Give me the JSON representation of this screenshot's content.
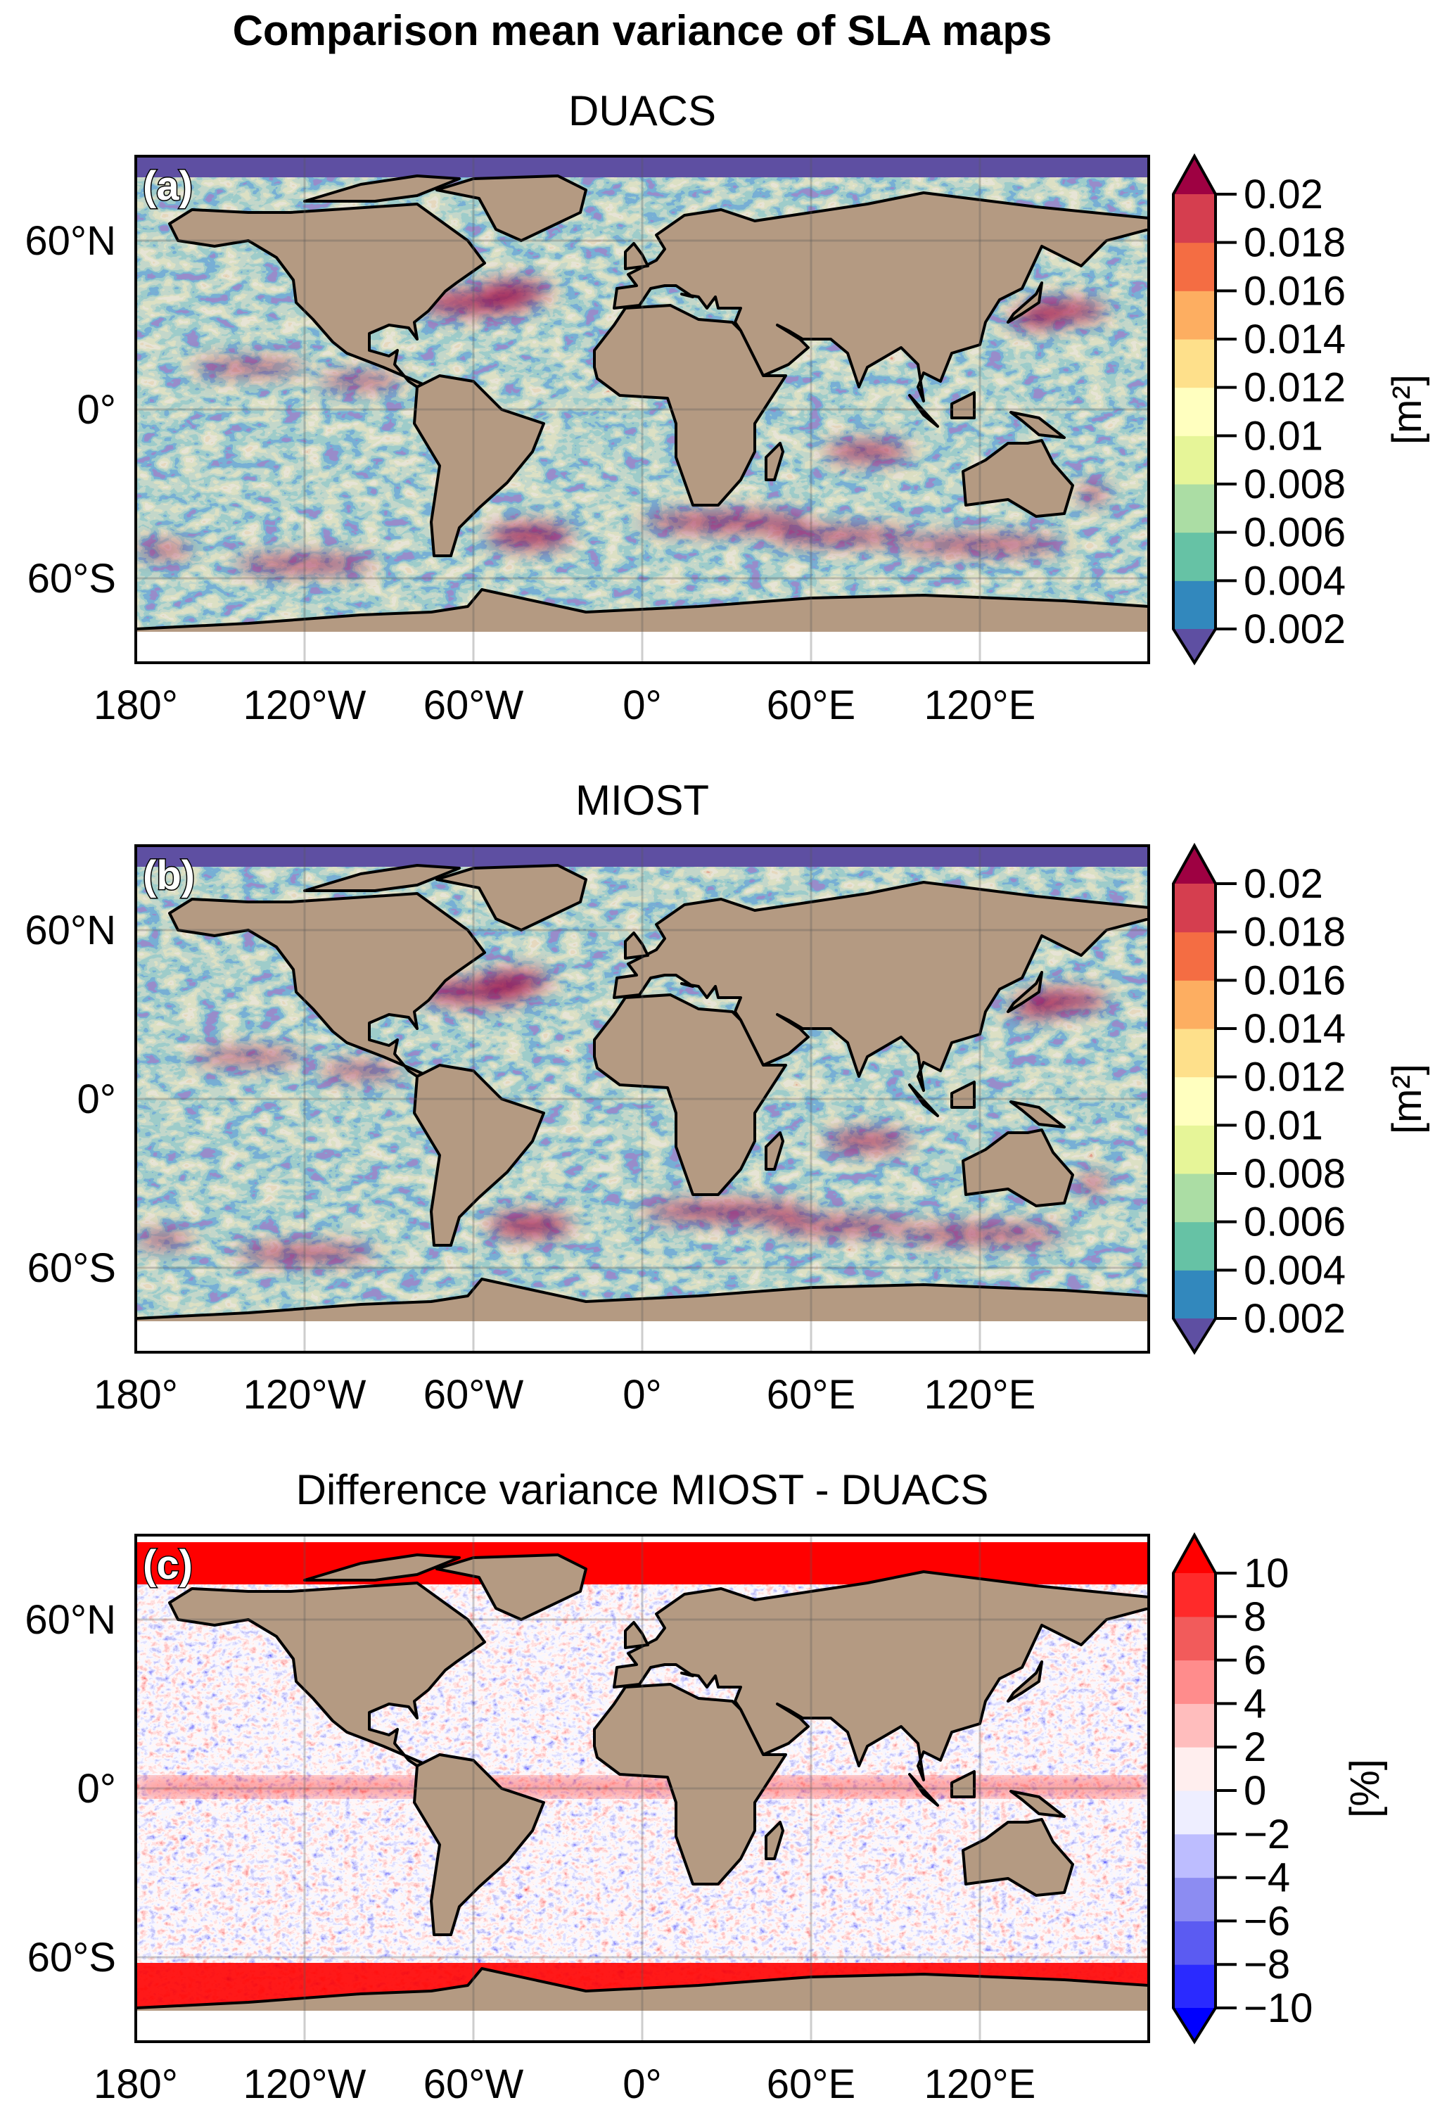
{
  "figure": {
    "title": "Comparison mean variance of SLA maps",
    "land_color": "#b49a82",
    "coastline_color": "#000000",
    "lon_ticks": [
      {
        "value": -180,
        "label": "180°"
      },
      {
        "value": -120,
        "label": "120°W"
      },
      {
        "value": -60,
        "label": "60°W"
      },
      {
        "value": 0,
        "label": "0°"
      },
      {
        "value": 60,
        "label": "60°E"
      },
      {
        "value": 120,
        "label": "120°E"
      }
    ],
    "lat_ticks": [
      {
        "value": 60,
        "label": "60°N"
      },
      {
        "value": 0,
        "label": "0°"
      },
      {
        "value": -60,
        "label": "60°S"
      }
    ],
    "panels": [
      {
        "id": "a",
        "panel_label": "(a)",
        "subtitle": "DUACS",
        "field": "variance",
        "colorbar": {
          "unit_label": "[m²]",
          "ticks": [
            "0.002",
            "0.004",
            "0.006",
            "0.008",
            "0.01",
            "0.012",
            "0.014",
            "0.016",
            "0.018",
            "0.02"
          ],
          "extend": "both",
          "under_color": "#5e4fa2",
          "over_color": "#9e0142",
          "colors": [
            "#3288bd",
            "#66c2a5",
            "#abdda4",
            "#e6f598",
            "#ffffbf",
            "#fee08b",
            "#fdae61",
            "#f46d43",
            "#d53e4f"
          ]
        }
      },
      {
        "id": "b",
        "panel_label": "(b)",
        "subtitle": "MIOST",
        "field": "variance",
        "colorbar": {
          "unit_label": "[m²]",
          "ticks": [
            "0.002",
            "0.004",
            "0.006",
            "0.008",
            "0.01",
            "0.012",
            "0.014",
            "0.016",
            "0.018",
            "0.02"
          ],
          "extend": "both",
          "under_color": "#5e4fa2",
          "over_color": "#9e0142",
          "colors": [
            "#3288bd",
            "#66c2a5",
            "#abdda4",
            "#e6f598",
            "#ffffbf",
            "#fee08b",
            "#fdae61",
            "#f46d43",
            "#d53e4f"
          ]
        }
      },
      {
        "id": "c",
        "panel_label": "(c)",
        "subtitle": "Difference variance MIOST - DUACS",
        "field": "difference",
        "colorbar": {
          "unit_label": "[%]",
          "ticks": [
            "−10",
            "−8",
            "−6",
            "−4",
            "−2",
            "0",
            "2",
            "4",
            "6",
            "8",
            "10"
          ],
          "extend": "both",
          "under_color": "#0000ff",
          "over_color": "#ff0000",
          "colors": [
            "#2a2aff",
            "#5b5bf2",
            "#8c8cf2",
            "#bdbdff",
            "#eeeeff",
            "#ffeeee",
            "#ffbdbd",
            "#ff8c8c",
            "#f25b5b",
            "#ff2a2a"
          ]
        }
      }
    ]
  }
}
